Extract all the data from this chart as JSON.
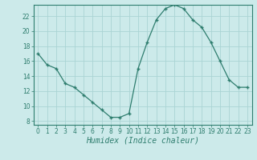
{
  "x": [
    0,
    1,
    2,
    3,
    4,
    5,
    6,
    7,
    8,
    9,
    10,
    11,
    12,
    13,
    14,
    15,
    16,
    17,
    18,
    19,
    20,
    21,
    22,
    23
  ],
  "y": [
    17,
    15.5,
    15,
    13,
    12.5,
    11.5,
    10.5,
    9.5,
    8.5,
    8.5,
    9,
    15,
    18.5,
    21.5,
    23,
    23.5,
    23,
    21.5,
    20.5,
    18.5,
    16,
    13.5,
    12.5,
    12.5
  ],
  "line_color": "#2e7d6e",
  "marker": "+",
  "marker_size": 3,
  "bg_color": "#cceaea",
  "grid_color": "#aad4d4",
  "xlabel": "Humidex (Indice chaleur)",
  "xlim": [
    -0.5,
    23.5
  ],
  "ylim": [
    7.5,
    23.5
  ],
  "yticks": [
    8,
    10,
    12,
    14,
    16,
    18,
    20,
    22
  ],
  "xticks": [
    0,
    1,
    2,
    3,
    4,
    5,
    6,
    7,
    8,
    9,
    10,
    11,
    12,
    13,
    14,
    15,
    16,
    17,
    18,
    19,
    20,
    21,
    22,
    23
  ],
  "tick_fontsize": 5.5,
  "xlabel_fontsize": 7
}
